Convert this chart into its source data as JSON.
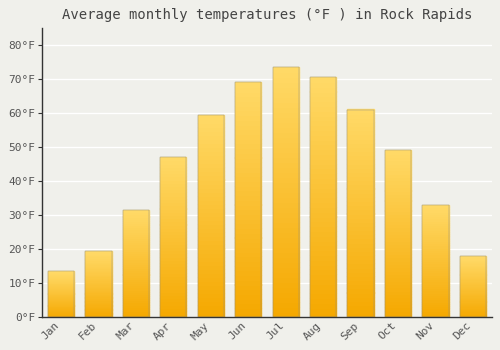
{
  "title": "Average monthly temperatures (°F ) in Rock Rapids",
  "months": [
    "Jan",
    "Feb",
    "Mar",
    "Apr",
    "May",
    "Jun",
    "Jul",
    "Aug",
    "Sep",
    "Oct",
    "Nov",
    "Dec"
  ],
  "values": [
    13.5,
    19.5,
    31.5,
    47.0,
    59.5,
    69.0,
    73.5,
    70.5,
    61.0,
    49.0,
    33.0,
    18.0
  ],
  "bar_color_bottom": "#F5A800",
  "bar_color_top": "#FFD966",
  "background_color": "#f0f0eb",
  "grid_color": "#ffffff",
  "ylim": [
    0,
    85
  ],
  "yticks": [
    0,
    10,
    20,
    30,
    40,
    50,
    60,
    70,
    80
  ],
  "ytick_labels": [
    "0°F",
    "10°F",
    "20°F",
    "30°F",
    "40°F",
    "50°F",
    "60°F",
    "70°F",
    "80°F"
  ],
  "title_fontsize": 10,
  "tick_fontsize": 8,
  "title_color": "#444444",
  "tick_color": "#555555",
  "spine_color": "#333333",
  "font_family": "monospace"
}
